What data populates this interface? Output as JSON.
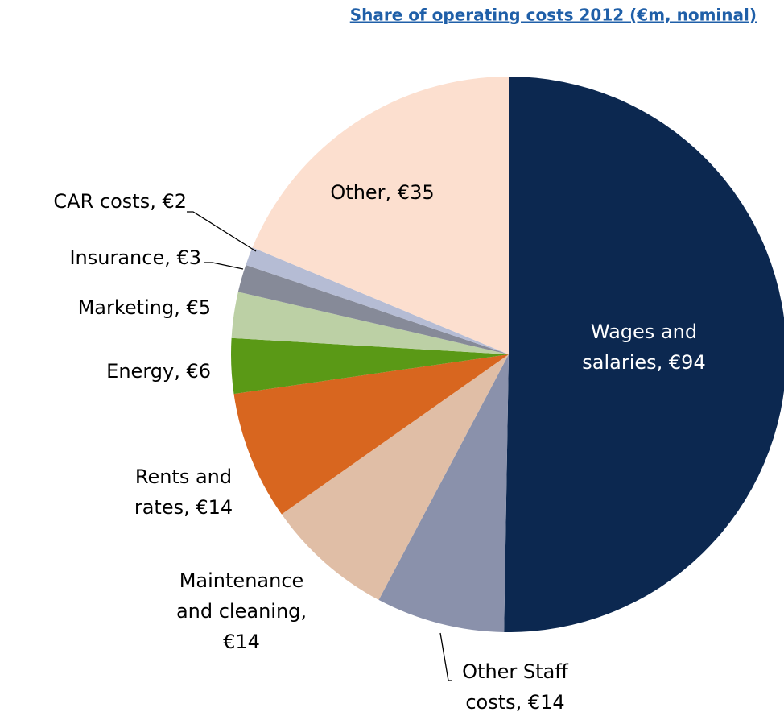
{
  "chart_data": {
    "type": "pie",
    "title": "Share of operating costs 2012 (€m, nominal)",
    "values": [
      94,
      14,
      14,
      14,
      6,
      5,
      3,
      2,
      35
    ],
    "value_labels": [
      [
        "Wages and",
        "salaries, €94"
      ],
      [
        "Other Staff",
        "costs, €14"
      ],
      [
        "Maintenance",
        "and cleaning,",
        "€14"
      ],
      [
        "Rents and",
        "rates, €14"
      ],
      [
        "Energy, €6"
      ],
      [
        "Marketing, €5"
      ],
      [
        "Insurance, €3"
      ],
      [
        "CAR costs, €2"
      ],
      [
        "Other, €35"
      ]
    ],
    "colors": [
      "#0c2850",
      "#8a91ab",
      "#e0bea6",
      "#d8661f",
      "#5a9916",
      "#bcd0a5",
      "#868a98",
      "#b5bcd4",
      "#fcdfcf"
    ]
  }
}
